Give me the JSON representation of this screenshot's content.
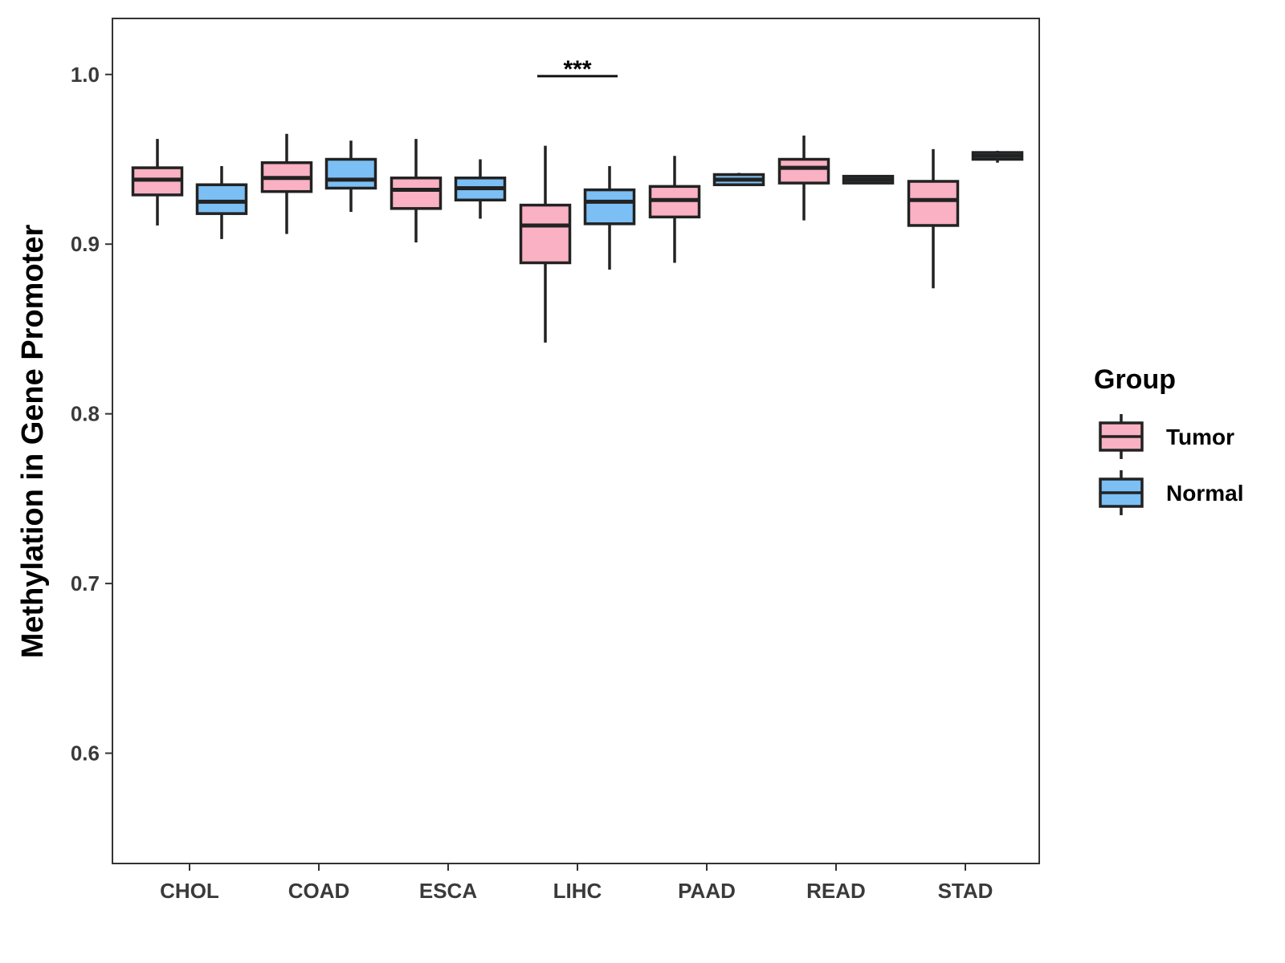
{
  "chart_data": {
    "type": "box",
    "title": "",
    "xlabel": "",
    "ylabel": "Methylation in Gene Promoter",
    "ylim": [
      0.535,
      1.033
    ],
    "yticks": [
      0.6,
      0.7,
      0.8,
      0.9,
      1.0
    ],
    "ytick_labels": [
      "0.6",
      "0.7",
      "0.8",
      "0.9",
      "1.0"
    ],
    "categories": [
      "CHOL",
      "COAD",
      "ESCA",
      "LIHC",
      "PAAD",
      "READ",
      "STAD"
    ],
    "legend": {
      "title": "Group",
      "position": "right",
      "entries": [
        {
          "name": "Tumor",
          "color": "#F9B1C3"
        },
        {
          "name": "Normal",
          "color": "#7BBFF4"
        }
      ]
    },
    "series": [
      {
        "name": "Tumor",
        "color": "#F9B1C3",
        "boxes": [
          {
            "category": "CHOL",
            "min": 0.911,
            "q1": 0.929,
            "median": 0.938,
            "q3": 0.945,
            "max": 0.962
          },
          {
            "category": "COAD",
            "min": 0.906,
            "q1": 0.931,
            "median": 0.939,
            "q3": 0.948,
            "max": 0.965
          },
          {
            "category": "ESCA",
            "min": 0.901,
            "q1": 0.921,
            "median": 0.932,
            "q3": 0.939,
            "max": 0.962
          },
          {
            "category": "LIHC",
            "min": 0.842,
            "q1": 0.889,
            "median": 0.911,
            "q3": 0.923,
            "max": 0.958
          },
          {
            "category": "PAAD",
            "min": 0.889,
            "q1": 0.916,
            "median": 0.926,
            "q3": 0.934,
            "max": 0.952
          },
          {
            "category": "READ",
            "min": 0.914,
            "q1": 0.936,
            "median": 0.945,
            "q3": 0.95,
            "max": 0.964
          },
          {
            "category": "STAD",
            "min": 0.874,
            "q1": 0.911,
            "median": 0.926,
            "q3": 0.937,
            "max": 0.956
          }
        ]
      },
      {
        "name": "Normal",
        "color": "#7BBFF4",
        "boxes": [
          {
            "category": "CHOL",
            "min": 0.903,
            "q1": 0.918,
            "median": 0.925,
            "q3": 0.935,
            "max": 0.946
          },
          {
            "category": "COAD",
            "min": 0.919,
            "q1": 0.933,
            "median": 0.938,
            "q3": 0.95,
            "max": 0.961
          },
          {
            "category": "ESCA",
            "min": 0.915,
            "q1": 0.926,
            "median": 0.933,
            "q3": 0.939,
            "max": 0.95
          },
          {
            "category": "LIHC",
            "min": 0.885,
            "q1": 0.912,
            "median": 0.925,
            "q3": 0.932,
            "max": 0.946
          },
          {
            "category": "PAAD",
            "min": 0.935,
            "q1": 0.935,
            "median": 0.938,
            "q3": 0.941,
            "max": 0.942
          },
          {
            "category": "READ",
            "min": 0.936,
            "q1": 0.936,
            "median": 0.938,
            "q3": 0.94,
            "max": 0.94
          },
          {
            "category": "STAD",
            "min": 0.948,
            "q1": 0.95,
            "median": 0.952,
            "q3": 0.954,
            "max": 0.955
          }
        ]
      }
    ],
    "annotations": [
      {
        "category": "LIHC",
        "text": "***",
        "y": 0.999
      }
    ]
  }
}
